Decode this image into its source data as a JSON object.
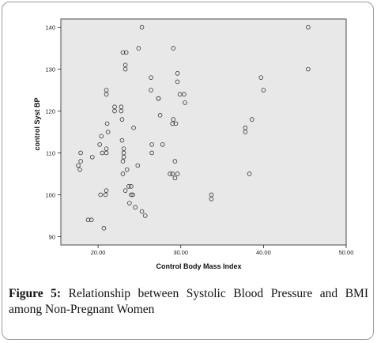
{
  "chart_data": {
    "type": "scatter",
    "xlabel": "Control Body Mass Index",
    "ylabel": "control Syst BP",
    "xlim": [
      15.5,
      50.0
    ],
    "ylim": [
      88,
      142
    ],
    "xticks": [
      20,
      30,
      40,
      50
    ],
    "xtick_labels": [
      "20.00",
      "30.00",
      "40.00",
      "50.00"
    ],
    "yticks": [
      90,
      100,
      110,
      120,
      130,
      140
    ],
    "ytick_labels": [
      "90",
      "100",
      "110",
      "120",
      "130",
      "140"
    ],
    "grid": false,
    "legend": "none",
    "marker": "open-circle",
    "points": [
      [
        17.6,
        107
      ],
      [
        17.9,
        108
      ],
      [
        17.8,
        106
      ],
      [
        17.9,
        110
      ],
      [
        19.3,
        109
      ],
      [
        18.8,
        94
      ],
      [
        19.2,
        94
      ],
      [
        20.2,
        112
      ],
      [
        20.5,
        110
      ],
      [
        20.4,
        114
      ],
      [
        20.3,
        100
      ],
      [
        20.7,
        92
      ],
      [
        21.0,
        124
      ],
      [
        21.0,
        125
      ],
      [
        21.1,
        117
      ],
      [
        21.2,
        115
      ],
      [
        21.0,
        110
      ],
      [
        21.0,
        111
      ],
      [
        20.9,
        100
      ],
      [
        21.0,
        101
      ],
      [
        22.0,
        121
      ],
      [
        22.0,
        120
      ],
      [
        22.8,
        121
      ],
      [
        22.8,
        120
      ],
      [
        22.9,
        118
      ],
      [
        22.9,
        113
      ],
      [
        23.1,
        111
      ],
      [
        23.1,
        110
      ],
      [
        23.1,
        109
      ],
      [
        23.0,
        108
      ],
      [
        23.0,
        134
      ],
      [
        23.4,
        134
      ],
      [
        23.3,
        131
      ],
      [
        23.3,
        130
      ],
      [
        23.5,
        106
      ],
      [
        23.0,
        105
      ],
      [
        23.3,
        101
      ],
      [
        23.7,
        102
      ],
      [
        24.0,
        102
      ],
      [
        24.0,
        100
      ],
      [
        24.2,
        100
      ],
      [
        23.8,
        98
      ],
      [
        24.5,
        97
      ],
      [
        24.3,
        116
      ],
      [
        24.8,
        107
      ],
      [
        24.9,
        135
      ],
      [
        25.3,
        140
      ],
      [
        25.3,
        96
      ],
      [
        25.7,
        95
      ],
      [
        26.4,
        128
      ],
      [
        26.4,
        125
      ],
      [
        26.5,
        112
      ],
      [
        26.5,
        110
      ],
      [
        27.3,
        123
      ],
      [
        27.3,
        123
      ],
      [
        27.5,
        119
      ],
      [
        27.8,
        112
      ],
      [
        28.7,
        105
      ],
      [
        29.0,
        105
      ],
      [
        29.1,
        135
      ],
      [
        29.1,
        118
      ],
      [
        29.0,
        117
      ],
      [
        29.3,
        108
      ],
      [
        29.3,
        104
      ],
      [
        29.6,
        105
      ],
      [
        29.4,
        117
      ],
      [
        29.6,
        129
      ],
      [
        29.6,
        127
      ],
      [
        29.9,
        124
      ],
      [
        30.4,
        124
      ],
      [
        30.5,
        122
      ],
      [
        33.7,
        100
      ],
      [
        33.7,
        99
      ],
      [
        37.8,
        116
      ],
      [
        37.8,
        115
      ],
      [
        38.3,
        105
      ],
      [
        38.6,
        118
      ],
      [
        39.7,
        128
      ],
      [
        40.0,
        125
      ],
      [
        45.4,
        140
      ],
      [
        45.4,
        130
      ]
    ]
  },
  "caption": {
    "figure_label": "Figure 5:",
    "text": " Relationship between Systolic Blood Pressure and BMI among Non-Pregnant Women"
  }
}
